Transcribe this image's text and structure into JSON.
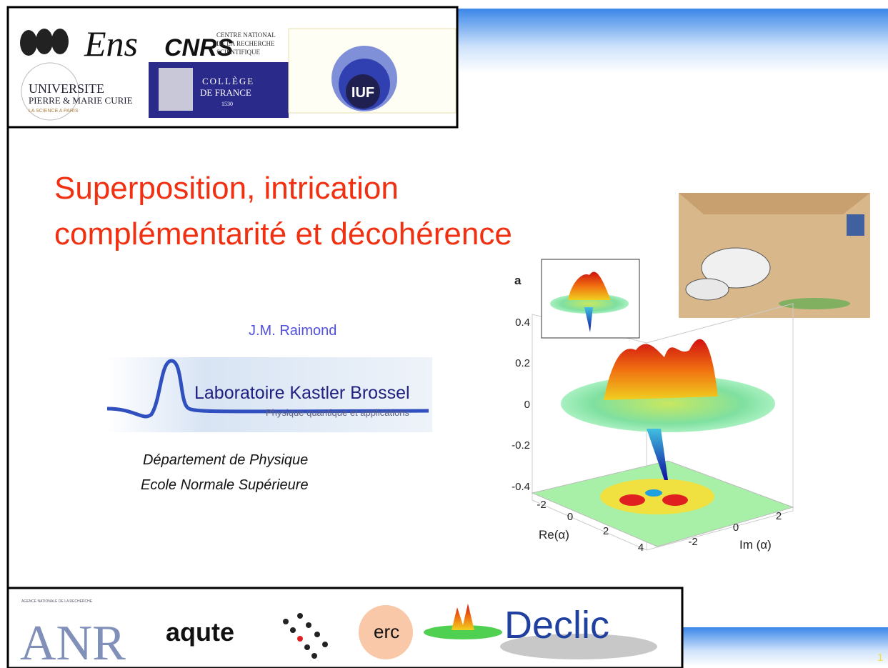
{
  "header_logos": {
    "ens": "Ens",
    "cnrs": "CNRS",
    "cnrs_name": [
      "CENTRE NATIONAL",
      "DE LA RECHERCHE",
      "SCIENTIFIQUE"
    ],
    "upmc": [
      "UNIVERSITE",
      "PIERRE & MARIE CURIE",
      "LA SCIENCE A PARIS"
    ],
    "college": [
      "COLLÈGE",
      "DE FRANCE",
      "1530"
    ],
    "iuf": "IUF"
  },
  "title": [
    "Superposition, intrication",
    "complémentarité et décohérence"
  ],
  "author": "J.M. Raimond",
  "lab": {
    "name": "Laboratoire Kastler Brossel",
    "subtitle": "Physique quantique et applications"
  },
  "affiliation": [
    "Département de Physique",
    "Ecole Normale Supérieure"
  ],
  "figure": {
    "panel": "a",
    "z_ticks": [
      "0.4",
      "0.2",
      "0",
      "-0.2",
      "-0.4"
    ],
    "re_ticks": [
      "-2",
      "0",
      "2",
      "4"
    ],
    "im_ticks": [
      "-2",
      "0",
      "2"
    ],
    "re_label": "Re(α)",
    "im_label": "Im (α)"
  },
  "footer_logos": {
    "anr_agency": "AGENCE NATIONALE DE LA RECHERCHE",
    "anr": "ANR",
    "aqute": "aqute",
    "erc": "erc",
    "declic": "Declic"
  },
  "page_number": "1"
}
